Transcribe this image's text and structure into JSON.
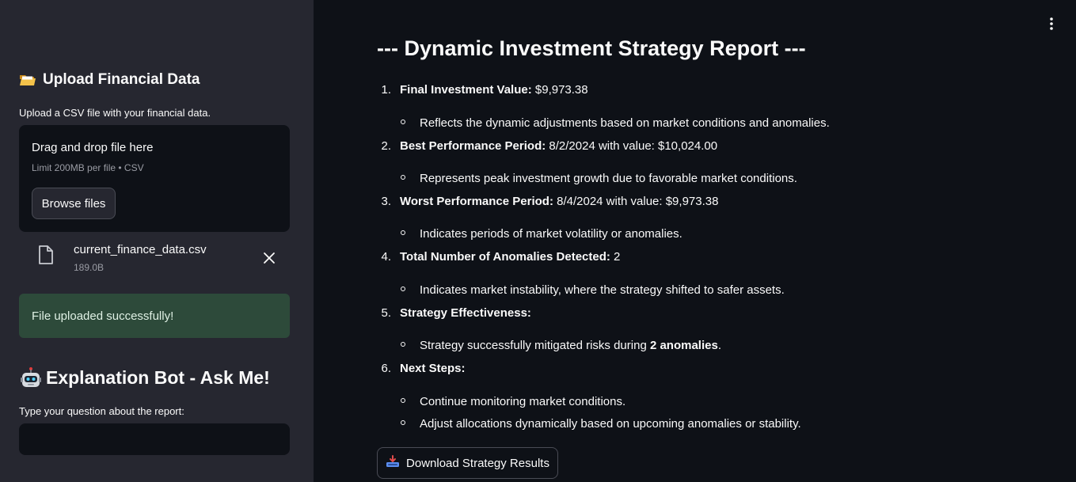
{
  "sidebar": {
    "upload_heading": "Upload Financial Data",
    "upload_instruction": "Upload a CSV file with your financial data.",
    "dropzone": {
      "title": "Drag and drop file here",
      "limit": "Limit 200MB per file • CSV",
      "browse_label": "Browse files"
    },
    "uploaded_file": {
      "name": "current_finance_data.csv",
      "size": "189.0B"
    },
    "success_message": "File uploaded successfully!",
    "bot_heading": "Explanation Bot - Ask Me!",
    "question_label": "Type your question about the report:",
    "question_value": ""
  },
  "main": {
    "title": "--- Dynamic Investment Strategy Report ---",
    "items": [
      {
        "num": "1.",
        "head": "Final Investment Value:",
        "text": " $9,973.38",
        "subs": [
          "Reflects the dynamic adjustments based on market conditions and anomalies."
        ]
      },
      {
        "num": "2.",
        "head": "Best Performance Period:",
        "text": " 8/2/2024 with value: $10,024.00",
        "subs": [
          "Represents peak investment growth due to favorable market conditions."
        ]
      },
      {
        "num": "3.",
        "head": "Worst Performance Period:",
        "text": " 8/4/2024 with value: $9,973.38",
        "subs": [
          "Indicates periods of market volatility or anomalies."
        ]
      },
      {
        "num": "4.",
        "head": "Total Number of Anomalies Detected:",
        "text": " 2",
        "subs": [
          "Indicates market instability, where the strategy shifted to safer assets."
        ]
      },
      {
        "num": "5.",
        "head": "Strategy Effectiveness:",
        "text": "",
        "subs": []
      },
      {
        "num": "6.",
        "head": "Next Steps:",
        "text": "",
        "subs": [
          "Continue monitoring market conditions.",
          "Adjust allocations dynamically based on upcoming anomalies or stability."
        ]
      }
    ],
    "effectiveness_sub": {
      "before": "Strategy successfully mitigated risks during ",
      "bold": "2 anomalies",
      "after": "."
    },
    "download_label": "Download Strategy Results"
  }
}
